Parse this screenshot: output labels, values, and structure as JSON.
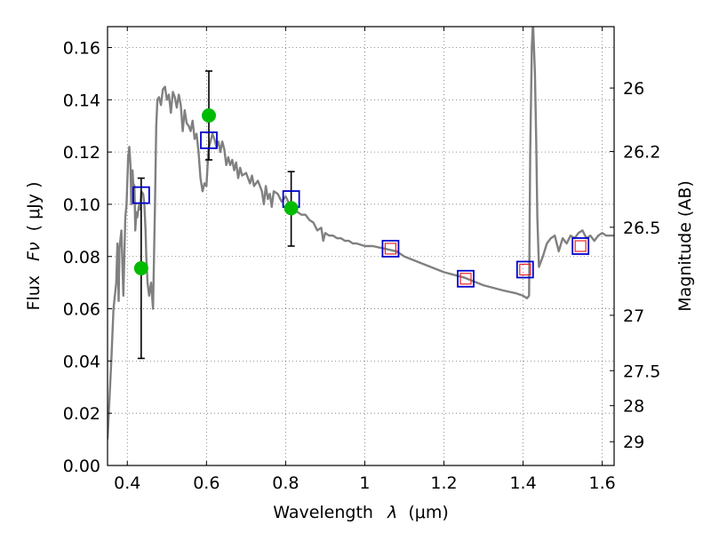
{
  "chart_data": {
    "type": "line",
    "title": "",
    "xlabel_prefix": "Wavelength",
    "xlabel_symbol": "λ",
    "xlabel_unit": "(μm)",
    "ylabel_prefix": "Flux",
    "ylabel_symbol": "Fν",
    "ylabel_unit": "( μJy )",
    "y2label": "Magnitude (AB)",
    "xlim": [
      0.35,
      1.63
    ],
    "ylim": [
      0.0,
      0.168
    ],
    "grid": true,
    "x_ticks": [
      0.4,
      0.6,
      0.8,
      1.0,
      1.2,
      1.4,
      1.6
    ],
    "x_tick_labels": [
      "0.4",
      "0.6",
      "0.8",
      "1",
      "1.2",
      "1.4",
      "1.6"
    ],
    "y_ticks": [
      0.0,
      0.02,
      0.04,
      0.06,
      0.08,
      0.1,
      0.12,
      0.14,
      0.16
    ],
    "y_tick_labels": [
      "0.00",
      "0.02",
      "0.04",
      "0.06",
      "0.08",
      "0.10",
      "0.12",
      "0.14",
      "0.16"
    ],
    "y2_ticks": [
      {
        "label": "26",
        "flux": 0.1445
      },
      {
        "label": "26.2",
        "flux": 0.1202
      },
      {
        "label": "26.5",
        "flux": 0.0912
      },
      {
        "label": "27",
        "flux": 0.0575
      },
      {
        "label": "27.5",
        "flux": 0.0363
      },
      {
        "label": "28",
        "flux": 0.0229
      },
      {
        "label": "29",
        "flux": 0.0091
      }
    ],
    "colors": {
      "model": "#808080",
      "observed": "#00bb00",
      "model_band": "#0000cc",
      "upper_box": "#ee2222",
      "errorbar": "#000000"
    },
    "series": [
      {
        "kind": "model-spectrum",
        "points": [
          [
            0.35,
            0.01
          ],
          [
            0.36,
            0.042
          ],
          [
            0.365,
            0.06
          ],
          [
            0.372,
            0.07
          ],
          [
            0.375,
            0.085
          ],
          [
            0.378,
            0.063
          ],
          [
            0.38,
            0.083
          ],
          [
            0.385,
            0.09
          ],
          [
            0.39,
            0.065
          ],
          [
            0.395,
            0.095
          ],
          [
            0.398,
            0.1
          ],
          [
            0.402,
            0.118
          ],
          [
            0.405,
            0.122
          ],
          [
            0.408,
            0.115
          ],
          [
            0.41,
            0.1
          ],
          [
            0.413,
            0.113
          ],
          [
            0.415,
            0.108
          ],
          [
            0.418,
            0.107
          ],
          [
            0.42,
            0.09
          ],
          [
            0.423,
            0.097
          ],
          [
            0.425,
            0.095
          ],
          [
            0.43,
            0.1
          ],
          [
            0.432,
            0.098
          ],
          [
            0.435,
            0.105
          ],
          [
            0.44,
            0.104
          ],
          [
            0.443,
            0.1
          ],
          [
            0.446,
            0.09
          ],
          [
            0.448,
            0.08
          ],
          [
            0.451,
            0.07
          ],
          [
            0.455,
            0.065
          ],
          [
            0.46,
            0.07
          ],
          [
            0.465,
            0.06
          ],
          [
            0.47,
            0.1
          ],
          [
            0.473,
            0.13
          ],
          [
            0.476,
            0.14
          ],
          [
            0.48,
            0.141
          ],
          [
            0.485,
            0.138
          ],
          [
            0.49,
            0.144
          ],
          [
            0.495,
            0.145
          ],
          [
            0.5,
            0.14
          ],
          [
            0.505,
            0.142
          ],
          [
            0.51,
            0.135
          ],
          [
            0.515,
            0.143
          ],
          [
            0.52,
            0.141
          ],
          [
            0.525,
            0.137
          ],
          [
            0.53,
            0.142
          ],
          [
            0.535,
            0.138
          ],
          [
            0.54,
            0.128
          ],
          [
            0.545,
            0.136
          ],
          [
            0.55,
            0.131
          ],
          [
            0.555,
            0.13
          ],
          [
            0.56,
            0.128
          ],
          [
            0.565,
            0.132
          ],
          [
            0.57,
            0.125
          ],
          [
            0.575,
            0.127
          ],
          [
            0.58,
            0.12
          ],
          [
            0.585,
            0.11
          ],
          [
            0.59,
            0.105
          ],
          [
            0.595,
            0.108
          ],
          [
            0.6,
            0.107
          ],
          [
            0.605,
            0.121
          ],
          [
            0.61,
            0.124
          ],
          [
            0.615,
            0.127
          ],
          [
            0.62,
            0.125
          ],
          [
            0.625,
            0.122
          ],
          [
            0.63,
            0.124
          ],
          [
            0.635,
            0.12
          ],
          [
            0.64,
            0.124
          ],
          [
            0.645,
            0.121
          ],
          [
            0.65,
            0.115
          ],
          [
            0.655,
            0.118
          ],
          [
            0.66,
            0.115
          ],
          [
            0.665,
            0.117
          ],
          [
            0.67,
            0.113
          ],
          [
            0.675,
            0.116
          ],
          [
            0.68,
            0.11
          ],
          [
            0.685,
            0.114
          ],
          [
            0.69,
            0.111
          ],
          [
            0.7,
            0.112
          ],
          [
            0.71,
            0.108
          ],
          [
            0.715,
            0.111
          ],
          [
            0.72,
            0.107
          ],
          [
            0.73,
            0.109
          ],
          [
            0.74,
            0.105
          ],
          [
            0.745,
            0.1
          ],
          [
            0.75,
            0.107
          ],
          [
            0.755,
            0.102
          ],
          [
            0.76,
            0.104
          ],
          [
            0.765,
            0.099
          ],
          [
            0.77,
            0.105
          ],
          [
            0.78,
            0.104
          ],
          [
            0.79,
            0.101
          ],
          [
            0.8,
            0.103
          ],
          [
            0.81,
            0.1
          ],
          [
            0.82,
            0.099
          ],
          [
            0.83,
            0.097
          ],
          [
            0.84,
            0.096
          ],
          [
            0.85,
            0.096
          ],
          [
            0.86,
            0.094
          ],
          [
            0.87,
            0.093
          ],
          [
            0.88,
            0.09
          ],
          [
            0.89,
            0.091
          ],
          [
            0.895,
            0.086
          ],
          [
            0.9,
            0.089
          ],
          [
            0.91,
            0.088
          ],
          [
            0.92,
            0.088
          ],
          [
            0.93,
            0.087
          ],
          [
            0.94,
            0.087
          ],
          [
            0.95,
            0.086
          ],
          [
            0.96,
            0.086
          ],
          [
            0.97,
            0.085
          ],
          [
            0.98,
            0.085
          ],
          [
            1.0,
            0.084
          ],
          [
            1.02,
            0.084
          ],
          [
            1.05,
            0.083
          ],
          [
            1.08,
            0.082
          ],
          [
            1.1,
            0.08
          ],
          [
            1.15,
            0.077
          ],
          [
            1.2,
            0.074
          ],
          [
            1.25,
            0.072
          ],
          [
            1.3,
            0.069
          ],
          [
            1.35,
            0.067
          ],
          [
            1.38,
            0.066
          ],
          [
            1.4,
            0.065
          ],
          [
            1.41,
            0.064
          ],
          [
            1.415,
            0.065
          ],
          [
            1.418,
            0.12
          ],
          [
            1.422,
            0.16
          ],
          [
            1.425,
            0.17
          ],
          [
            1.43,
            0.15
          ],
          [
            1.433,
            0.125
          ],
          [
            1.436,
            0.095
          ],
          [
            1.44,
            0.076
          ],
          [
            1.45,
            0.08
          ],
          [
            1.46,
            0.085
          ],
          [
            1.47,
            0.087
          ],
          [
            1.48,
            0.088
          ],
          [
            1.49,
            0.082
          ],
          [
            1.5,
            0.087
          ],
          [
            1.51,
            0.085
          ],
          [
            1.52,
            0.088
          ],
          [
            1.53,
            0.087
          ],
          [
            1.54,
            0.089
          ],
          [
            1.55,
            0.09
          ],
          [
            1.56,
            0.087
          ],
          [
            1.57,
            0.088
          ],
          [
            1.58,
            0.086
          ],
          [
            1.59,
            0.088
          ],
          [
            1.6,
            0.089
          ],
          [
            1.61,
            0.088
          ],
          [
            1.63,
            0.088
          ]
        ]
      },
      {
        "kind": "observed-flux",
        "points": [
          {
            "x": 0.435,
            "y": 0.0755,
            "err_low": 0.041,
            "err_high": 0.11
          },
          {
            "x": 0.606,
            "y": 0.134,
            "err_low": 0.117,
            "err_high": 0.151
          },
          {
            "x": 0.814,
            "y": 0.0985,
            "err_low": 0.084,
            "err_high": 0.1125
          }
        ]
      },
      {
        "kind": "model-band-flux",
        "points": [
          {
            "x": 0.435,
            "y": 0.1035
          },
          {
            "x": 0.606,
            "y": 0.1245
          },
          {
            "x": 0.814,
            "y": 0.102
          },
          {
            "x": 1.065,
            "y": 0.083
          },
          {
            "x": 1.255,
            "y": 0.0715
          },
          {
            "x": 1.405,
            "y": 0.075
          },
          {
            "x": 1.545,
            "y": 0.084
          }
        ]
      },
      {
        "kind": "upper-limit-box",
        "points": [
          {
            "x": 1.065,
            "y": 0.083
          },
          {
            "x": 1.255,
            "y": 0.0715
          },
          {
            "x": 1.405,
            "y": 0.075
          },
          {
            "x": 1.545,
            "y": 0.084
          }
        ]
      }
    ]
  }
}
